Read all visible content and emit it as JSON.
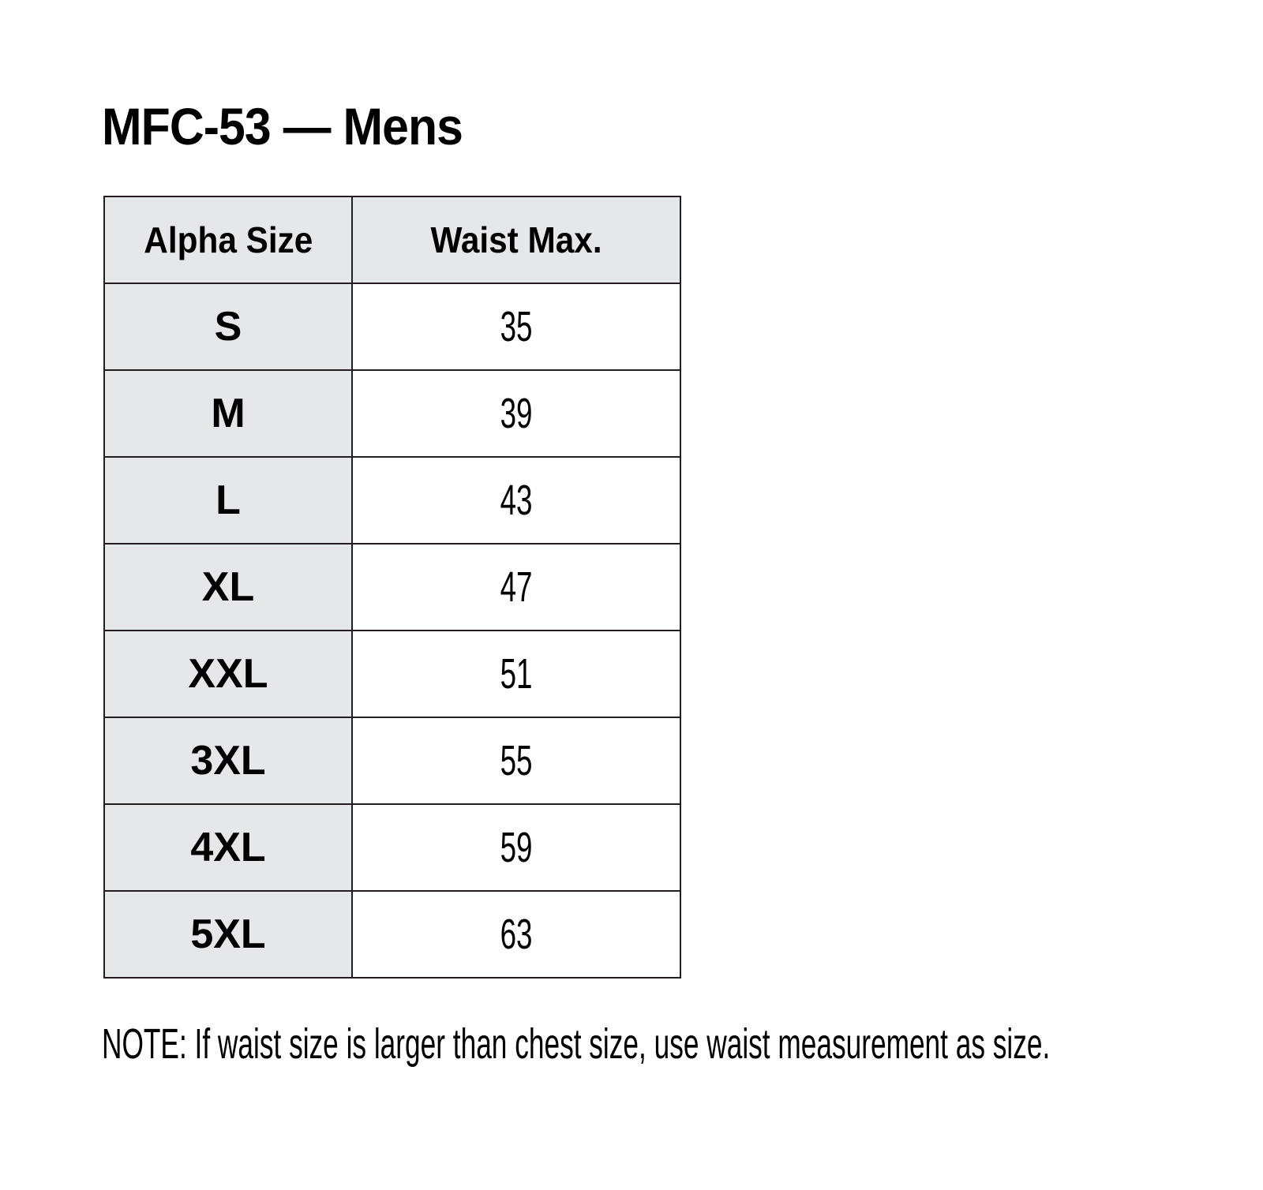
{
  "title": "MFC-53 — Mens",
  "table": {
    "headers": [
      "Alpha Size",
      "Waist Max."
    ],
    "rows": [
      {
        "size": "S",
        "waist": "35"
      },
      {
        "size": "M",
        "waist": "39"
      },
      {
        "size": "L",
        "waist": "43"
      },
      {
        "size": "XL",
        "waist": "47"
      },
      {
        "size": "XXL",
        "waist": "51"
      },
      {
        "size": "3XL",
        "waist": "55"
      },
      {
        "size": "4XL",
        "waist": "59"
      },
      {
        "size": "5XL",
        "waist": "63"
      }
    ]
  },
  "note": "NOTE: If waist size is larger than chest size, use waist measurement as size.",
  "colors": {
    "header_bg": "#e6e7e8",
    "border": "#231f20"
  }
}
